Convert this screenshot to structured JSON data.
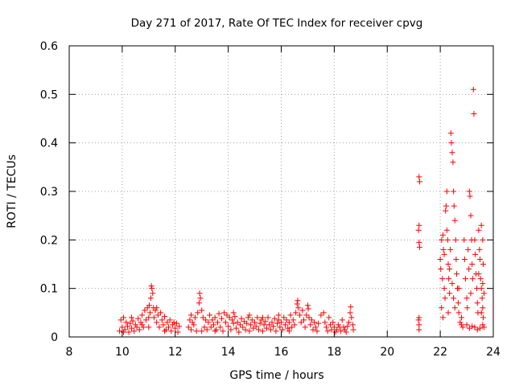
{
  "chart_data": {
    "type": "scatter",
    "title": "Day 271 of 2017, Rate Of TEC Index for receiver cpvg",
    "xlabel": "GPS time / hours",
    "ylabel": "ROTI / TECUs",
    "xlim": [
      8,
      24
    ],
    "ylim": [
      0,
      0.6
    ],
    "xticks": [
      8,
      10,
      12,
      14,
      16,
      18,
      20,
      22,
      24
    ],
    "yticks": [
      0,
      0.1,
      0.2,
      0.3,
      0.4,
      0.5,
      0.6
    ],
    "ytick_labels": [
      "0",
      "0.1",
      "0.2",
      "0.3",
      "0.4",
      "0.5",
      "0.6"
    ],
    "grid": true,
    "marker": "+",
    "color": "#ff0000",
    "series": [
      {
        "name": "ROTI",
        "points": [
          [
            9.9,
            0.012
          ],
          [
            9.95,
            0.035
          ],
          [
            10.0,
            0.02
          ],
          [
            10.05,
            0.04
          ],
          [
            10.1,
            0.015
          ],
          [
            10.15,
            0.03
          ],
          [
            10.2,
            0.022
          ],
          [
            10.25,
            0.01
          ],
          [
            10.3,
            0.028
          ],
          [
            10.35,
            0.018
          ],
          [
            10.4,
            0.033
          ],
          [
            10.45,
            0.012
          ],
          [
            10.5,
            0.025
          ],
          [
            10.55,
            0.02
          ],
          [
            10.6,
            0.038
          ],
          [
            10.65,
            0.015
          ],
          [
            10.7,
            0.03
          ],
          [
            10.75,
            0.045
          ],
          [
            10.8,
            0.02
          ],
          [
            10.85,
            0.055
          ],
          [
            10.9,
            0.035
          ],
          [
            10.95,
            0.06
          ],
          [
            11.0,
            0.04
          ],
          [
            11.02,
            0.065
          ],
          [
            11.05,
            0.05
          ],
          [
            11.08,
            0.08
          ],
          [
            11.1,
            0.105
          ],
          [
            11.12,
            0.1
          ],
          [
            11.15,
            0.09
          ],
          [
            11.18,
            0.06
          ],
          [
            11.2,
            0.04
          ],
          [
            11.25,
            0.055
          ],
          [
            11.3,
            0.03
          ],
          [
            11.35,
            0.045
          ],
          [
            11.4,
            0.02
          ],
          [
            11.45,
            0.05
          ],
          [
            11.5,
            0.035
          ],
          [
            11.55,
            0.025
          ],
          [
            11.6,
            0.042
          ],
          [
            11.65,
            0.015
          ],
          [
            11.7,
            0.03
          ],
          [
            11.75,
            0.02
          ],
          [
            11.8,
            0.035
          ],
          [
            11.85,
            0.012
          ],
          [
            11.9,
            0.025
          ],
          [
            11.95,
            0.03
          ],
          [
            12.0,
            0.018
          ],
          [
            12.05,
            0.028
          ],
          [
            12.1,
            0.01
          ],
          [
            12.15,
            0.022
          ],
          [
            10.05,
            0.01
          ],
          [
            10.35,
            0.04
          ],
          [
            10.75,
            0.025
          ],
          [
            11.0,
            0.02
          ],
          [
            11.3,
            0.06
          ],
          [
            11.6,
            0.012
          ],
          [
            12.5,
            0.02
          ],
          [
            12.55,
            0.035
          ],
          [
            12.6,
            0.015
          ],
          [
            12.65,
            0.03
          ],
          [
            12.7,
            0.025
          ],
          [
            12.75,
            0.04
          ],
          [
            12.8,
            0.012
          ],
          [
            12.85,
            0.05
          ],
          [
            12.9,
            0.07
          ],
          [
            12.92,
            0.09
          ],
          [
            12.95,
            0.08
          ],
          [
            13.0,
            0.055
          ],
          [
            13.05,
            0.04
          ],
          [
            13.1,
            0.02
          ],
          [
            13.15,
            0.035
          ],
          [
            13.2,
            0.015
          ],
          [
            13.25,
            0.03
          ],
          [
            13.3,
            0.045
          ],
          [
            13.35,
            0.02
          ],
          [
            13.4,
            0.035
          ],
          [
            13.45,
            0.025
          ],
          [
            13.5,
            0.04
          ],
          [
            13.55,
            0.015
          ],
          [
            13.6,
            0.03
          ],
          [
            13.65,
            0.048
          ],
          [
            13.7,
            0.02
          ],
          [
            13.75,
            0.038
          ],
          [
            13.8,
            0.012
          ],
          [
            13.85,
            0.05
          ],
          [
            13.9,
            0.03
          ],
          [
            13.95,
            0.045
          ],
          [
            14.0,
            0.022
          ],
          [
            14.05,
            0.04
          ],
          [
            14.1,
            0.015
          ],
          [
            14.15,
            0.035
          ],
          [
            14.2,
            0.028
          ],
          [
            14.25,
            0.042
          ],
          [
            14.3,
            0.018
          ],
          [
            14.35,
            0.03
          ],
          [
            14.4,
            0.01
          ],
          [
            14.45,
            0.025
          ],
          [
            14.5,
            0.038
          ],
          [
            14.55,
            0.02
          ],
          [
            14.6,
            0.032
          ],
          [
            14.65,
            0.015
          ],
          [
            14.7,
            0.028
          ],
          [
            14.75,
            0.04
          ],
          [
            14.8,
            0.012
          ],
          [
            14.85,
            0.025
          ],
          [
            14.9,
            0.035
          ],
          [
            14.95,
            0.018
          ],
          [
            15.0,
            0.03
          ],
          [
            15.05,
            0.022
          ],
          [
            15.1,
            0.04
          ],
          [
            15.15,
            0.015
          ],
          [
            15.2,
            0.028
          ],
          [
            15.25,
            0.035
          ],
          [
            15.3,
            0.012
          ],
          [
            15.35,
            0.025
          ],
          [
            15.4,
            0.032
          ],
          [
            15.45,
            0.018
          ],
          [
            15.5,
            0.04
          ],
          [
            15.55,
            0.025
          ],
          [
            15.6,
            0.015
          ],
          [
            15.65,
            0.03
          ],
          [
            15.7,
            0.022
          ],
          [
            15.75,
            0.038
          ],
          [
            15.8,
            0.012
          ],
          [
            15.85,
            0.028
          ],
          [
            15.9,
            0.035
          ],
          [
            15.95,
            0.02
          ],
          [
            16.0,
            0.03
          ],
          [
            16.05,
            0.015
          ],
          [
            16.1,
            0.04
          ],
          [
            16.15,
            0.025
          ],
          [
            16.2,
            0.035
          ],
          [
            16.25,
            0.018
          ],
          [
            16.3,
            0.03
          ],
          [
            16.35,
            0.045
          ],
          [
            16.4,
            0.02
          ],
          [
            16.45,
            0.035
          ],
          [
            16.5,
            0.025
          ],
          [
            16.55,
            0.05
          ],
          [
            16.6,
            0.068
          ],
          [
            16.62,
            0.075
          ],
          [
            16.65,
            0.06
          ],
          [
            16.7,
            0.045
          ],
          [
            16.75,
            0.03
          ],
          [
            16.8,
            0.055
          ],
          [
            16.85,
            0.035
          ],
          [
            16.9,
            0.02
          ],
          [
            16.95,
            0.045
          ],
          [
            17.0,
            0.065
          ],
          [
            17.02,
            0.058
          ],
          [
            17.05,
            0.04
          ],
          [
            17.1,
            0.025
          ],
          [
            17.15,
            0.035
          ],
          [
            17.2,
            0.015
          ],
          [
            17.25,
            0.03
          ],
          [
            17.3,
            0.02
          ],
          [
            17.35,
            0.012
          ],
          [
            17.4,
            0.028
          ],
          [
            17.5,
            0.045
          ],
          [
            17.6,
            0.05
          ],
          [
            17.65,
            0.03
          ],
          [
            17.7,
            0.02
          ],
          [
            17.75,
            0.012
          ],
          [
            17.8,
            0.04
          ],
          [
            17.85,
            0.025
          ],
          [
            17.9,
            0.015
          ],
          [
            17.95,
            0.03
          ],
          [
            18.0,
            0.02
          ],
          [
            18.05,
            0.01
          ],
          [
            18.1,
            0.015
          ],
          [
            18.15,
            0.025
          ],
          [
            18.2,
            0.02
          ],
          [
            18.25,
            0.012
          ],
          [
            18.3,
            0.035
          ],
          [
            18.35,
            0.02
          ],
          [
            18.4,
            0.015
          ],
          [
            18.45,
            0.01
          ],
          [
            18.5,
            0.022
          ],
          [
            18.55,
            0.03
          ],
          [
            18.6,
            0.05
          ],
          [
            18.62,
            0.062
          ],
          [
            18.65,
            0.04
          ],
          [
            18.7,
            0.025
          ],
          [
            18.72,
            0.015
          ],
          [
            12.6,
            0.045
          ],
          [
            13.0,
            0.012
          ],
          [
            13.5,
            0.012
          ],
          [
            14.2,
            0.05
          ],
          [
            14.8,
            0.045
          ],
          [
            15.3,
            0.04
          ],
          [
            15.9,
            0.045
          ],
          [
            16.3,
            0.012
          ],
          [
            21.2,
            0.33
          ],
          [
            21.22,
            0.32
          ],
          [
            21.2,
            0.23
          ],
          [
            21.18,
            0.22
          ],
          [
            21.2,
            0.195
          ],
          [
            21.22,
            0.185
          ],
          [
            21.2,
            0.04
          ],
          [
            21.18,
            0.035
          ],
          [
            21.2,
            0.025
          ],
          [
            21.2,
            0.015
          ],
          [
            22.0,
            0.16
          ],
          [
            22.02,
            0.14
          ],
          [
            22.05,
            0.2
          ],
          [
            22.08,
            0.12
          ],
          [
            22.1,
            0.21
          ],
          [
            22.12,
            0.18
          ],
          [
            22.15,
            0.1
          ],
          [
            22.18,
            0.08
          ],
          [
            22.2,
            0.26
          ],
          [
            22.22,
            0.27
          ],
          [
            22.25,
            0.3
          ],
          [
            22.28,
            0.2
          ],
          [
            22.3,
            0.15
          ],
          [
            22.32,
            0.12
          ],
          [
            22.35,
            0.09
          ],
          [
            22.38,
            0.18
          ],
          [
            22.4,
            0.42
          ],
          [
            22.42,
            0.4
          ],
          [
            22.45,
            0.38
          ],
          [
            22.48,
            0.36
          ],
          [
            22.5,
            0.3
          ],
          [
            22.52,
            0.27
          ],
          [
            22.55,
            0.24
          ],
          [
            22.58,
            0.2
          ],
          [
            22.6,
            0.16
          ],
          [
            22.62,
            0.13
          ],
          [
            22.65,
            0.1
          ],
          [
            22.68,
            0.07
          ],
          [
            22.7,
            0.05
          ],
          [
            22.75,
            0.03
          ],
          [
            22.8,
            0.025
          ],
          [
            22.85,
            0.02
          ],
          [
            22.9,
            0.2
          ],
          [
            22.92,
            0.16
          ],
          [
            22.95,
            0.12
          ],
          [
            23.0,
            0.08
          ],
          [
            23.02,
            0.06
          ],
          [
            23.05,
            0.18
          ],
          [
            23.08,
            0.14
          ],
          [
            23.1,
            0.3
          ],
          [
            23.12,
            0.29
          ],
          [
            23.15,
            0.25
          ],
          [
            23.18,
            0.2
          ],
          [
            23.2,
            0.15
          ],
          [
            23.22,
            0.12
          ],
          [
            23.25,
            0.51
          ],
          [
            23.27,
            0.46
          ],
          [
            23.3,
            0.2
          ],
          [
            23.32,
            0.17
          ],
          [
            23.35,
            0.13
          ],
          [
            23.38,
            0.1
          ],
          [
            23.4,
            0.07
          ],
          [
            23.42,
            0.05
          ],
          [
            23.45,
            0.22
          ],
          [
            23.48,
            0.18
          ],
          [
            23.5,
            0.16
          ],
          [
            23.52,
            0.12
          ],
          [
            23.55,
            0.1
          ],
          [
            23.58,
            0.08
          ],
          [
            23.6,
            0.06
          ],
          [
            23.62,
            0.04
          ],
          [
            23.65,
            0.02
          ],
          [
            23.3,
            0.02
          ],
          [
            23.4,
            0.015
          ],
          [
            23.5,
            0.018
          ],
          [
            23.6,
            0.025
          ],
          [
            23.1,
            0.018
          ],
          [
            23.2,
            0.022
          ],
          [
            22.05,
            0.06
          ],
          [
            22.3,
            0.05
          ],
          [
            22.1,
            0.04
          ],
          [
            22.5,
            0.08
          ],
          [
            22.7,
            0.1
          ],
          [
            23.0,
            0.025
          ],
          [
            23.55,
            0.23
          ],
          [
            23.6,
            0.2
          ],
          [
            23.62,
            0.15
          ],
          [
            23.65,
            0.09
          ],
          [
            23.55,
            0.05
          ],
          [
            22.15,
            0.17
          ],
          [
            22.25,
            0.22
          ],
          [
            22.35,
            0.14
          ],
          [
            22.45,
            0.11
          ],
          [
            22.55,
            0.06
          ],
          [
            22.8,
            0.04
          ],
          [
            23.15,
            0.09
          ],
          [
            23.45,
            0.13
          ],
          [
            23.6,
            0.11
          ]
        ]
      }
    ]
  }
}
